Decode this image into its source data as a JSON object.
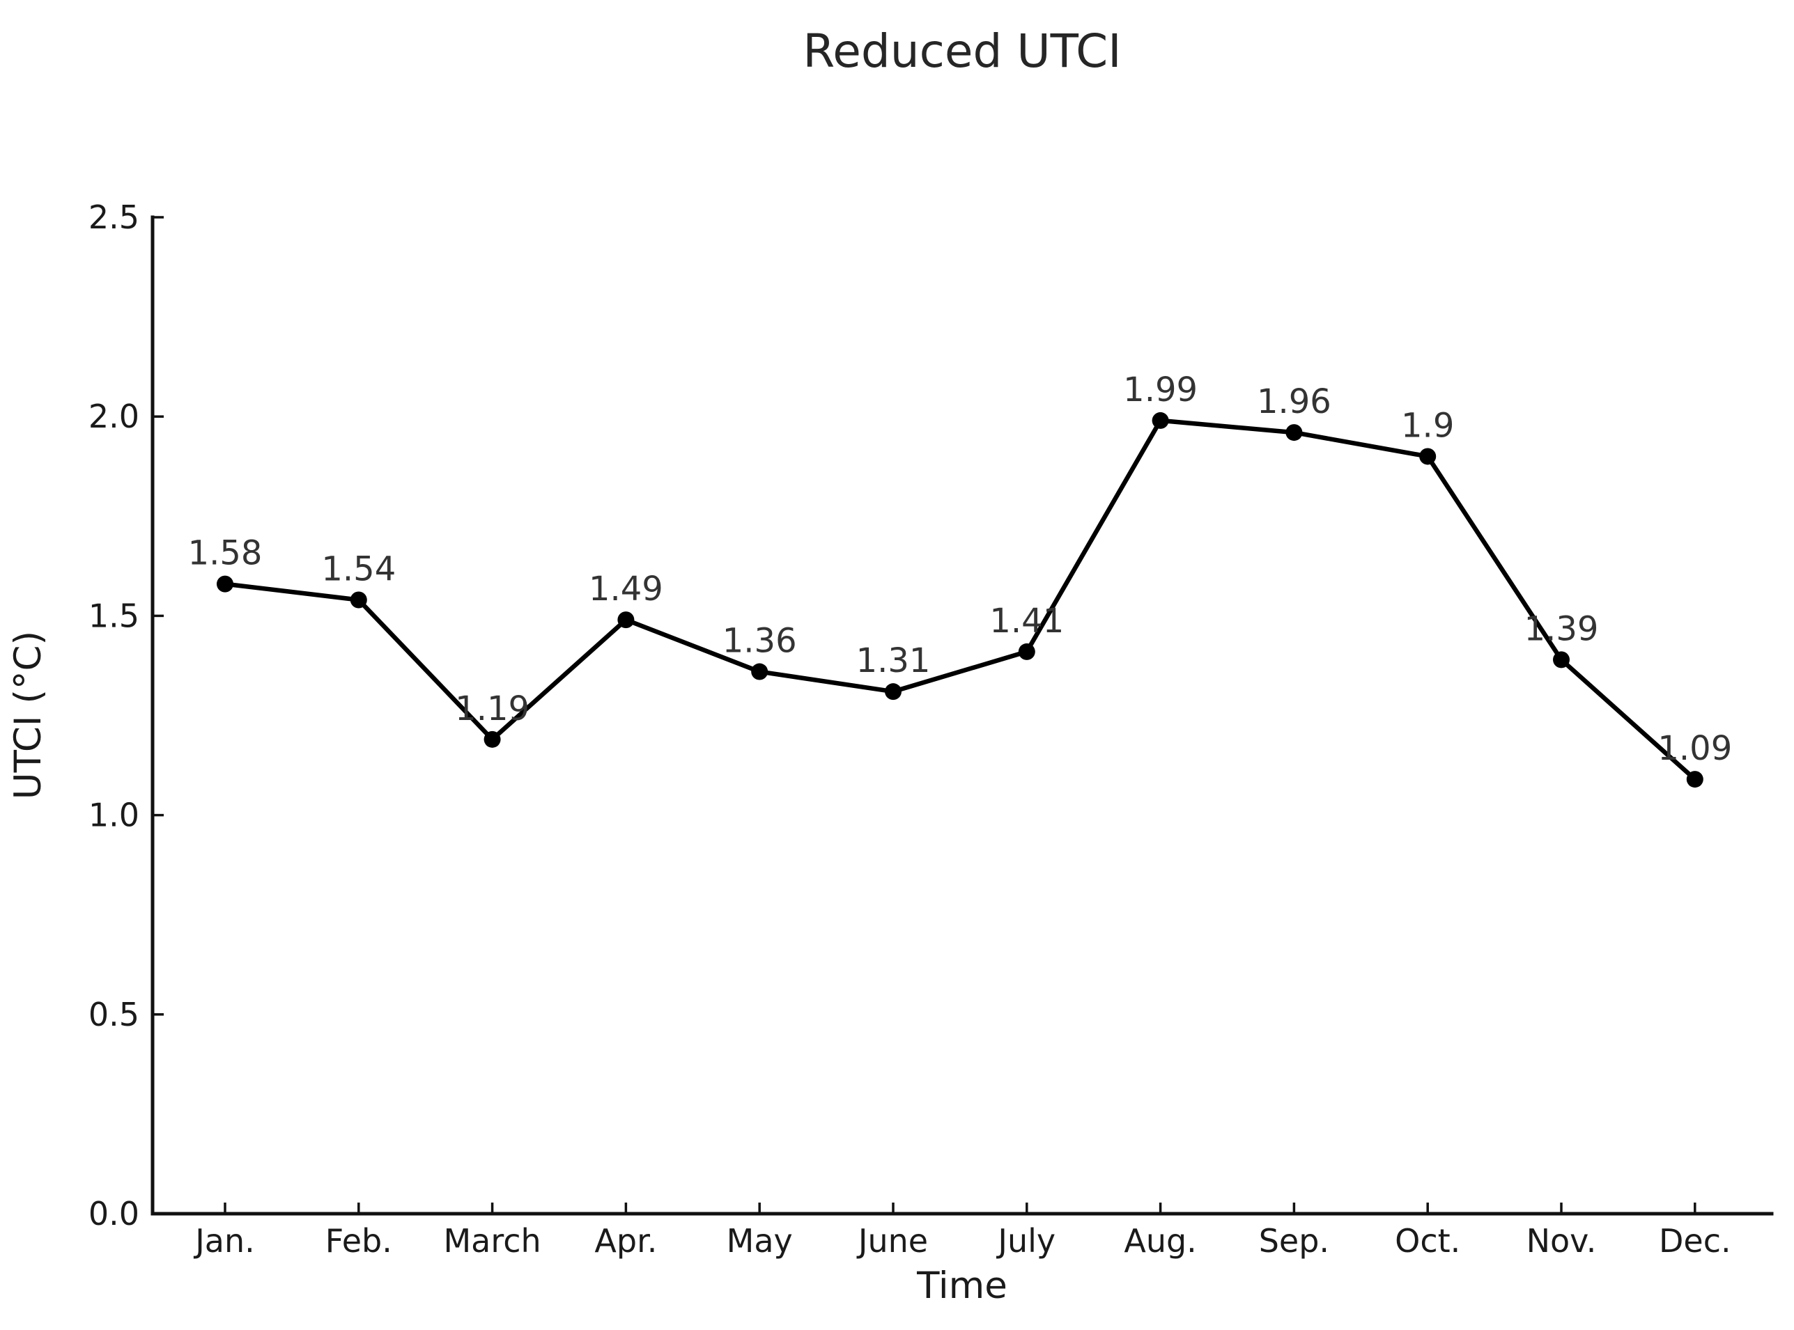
{
  "chart_data": {
    "type": "line",
    "title": "Reduced UTCI",
    "xlabel": "Time",
    "ylabel": "UTCI (°C)",
    "categories": [
      "Jan.",
      "Feb.",
      "March",
      "Apr.",
      "May",
      "June",
      "July",
      "Aug.",
      "Sep.",
      "Oct.",
      "Nov.",
      "Dec."
    ],
    "series": [
      {
        "name": "Reduced UTCI",
        "values": [
          1.58,
          1.54,
          1.19,
          1.49,
          1.36,
          1.31,
          1.41,
          1.99,
          1.96,
          1.9,
          1.39,
          1.09
        ]
      }
    ],
    "point_labels": [
      "1.58",
      "1.54",
      "1.19",
      "1.49",
      "1.36",
      "1.31",
      "1.41",
      "1.99",
      "1.96",
      "1.9",
      "1.39",
      "1.09"
    ],
    "ytick_labels": [
      "0.0",
      "0.5",
      "1.0",
      "1.5",
      "2.0",
      "2.5"
    ],
    "ytick_values": [
      0.0,
      0.5,
      1.0,
      1.5,
      2.0,
      2.5
    ],
    "ylim": [
      0.0,
      2.5
    ],
    "grid": false,
    "legend_position": "none",
    "line_color": "#000000",
    "marker": "circle",
    "marker_color": "#000000",
    "label_color": "#333333",
    "axis_color": "#111111",
    "tick_direction": "in"
  }
}
